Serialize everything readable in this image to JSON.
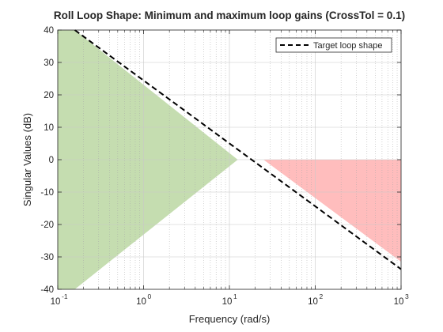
{
  "chart_data": {
    "type": "area",
    "title": "Roll Loop Shape: Minimum and maximum loop gains (CrossTol = 0.1)",
    "xlabel": "Frequency (rad/s)",
    "ylabel": "Singular Values (dB)",
    "xscale": "log",
    "xlim": [
      0.1,
      1000
    ],
    "ylim": [
      -40,
      40
    ],
    "x_ticks": [
      {
        "base": "10",
        "exp": "-1"
      },
      {
        "base": "10",
        "exp": "0"
      },
      {
        "base": "10",
        "exp": "1"
      },
      {
        "base": "10",
        "exp": "2"
      },
      {
        "base": "10",
        "exp": "3"
      }
    ],
    "x_tick_values": [
      0.1,
      1,
      10,
      100,
      1000
    ],
    "y_ticks": [
      "-40",
      "-30",
      "-20",
      "-10",
      "0",
      "10",
      "20",
      "30",
      "40"
    ],
    "y_tick_values": [
      -40,
      -30,
      -20,
      -10,
      0,
      10,
      20,
      30,
      40
    ],
    "grid": true,
    "minor_grid": true,
    "legend": {
      "position": "top-right",
      "entries": [
        "Target loop shape"
      ]
    },
    "series": [
      {
        "name": "Target loop shape",
        "style": "dashed",
        "color": "#000000",
        "x": [
          0.158,
          1000
        ],
        "y": [
          40,
          -33.8
        ]
      }
    ],
    "regions": [
      {
        "kind": "minimum-gain",
        "color": "#c5ddb0",
        "points": [
          [
            0.1,
            40
          ],
          [
            0.158,
            40
          ],
          [
            12.5,
            0
          ],
          [
            0.158,
            -40
          ],
          [
            0.1,
            -40
          ]
        ]
      },
      {
        "kind": "maximum-gain",
        "color": "#ffbdbd",
        "points": [
          [
            25,
            0
          ],
          [
            1000,
            0
          ],
          [
            1000,
            -31.5
          ]
        ]
      }
    ]
  }
}
